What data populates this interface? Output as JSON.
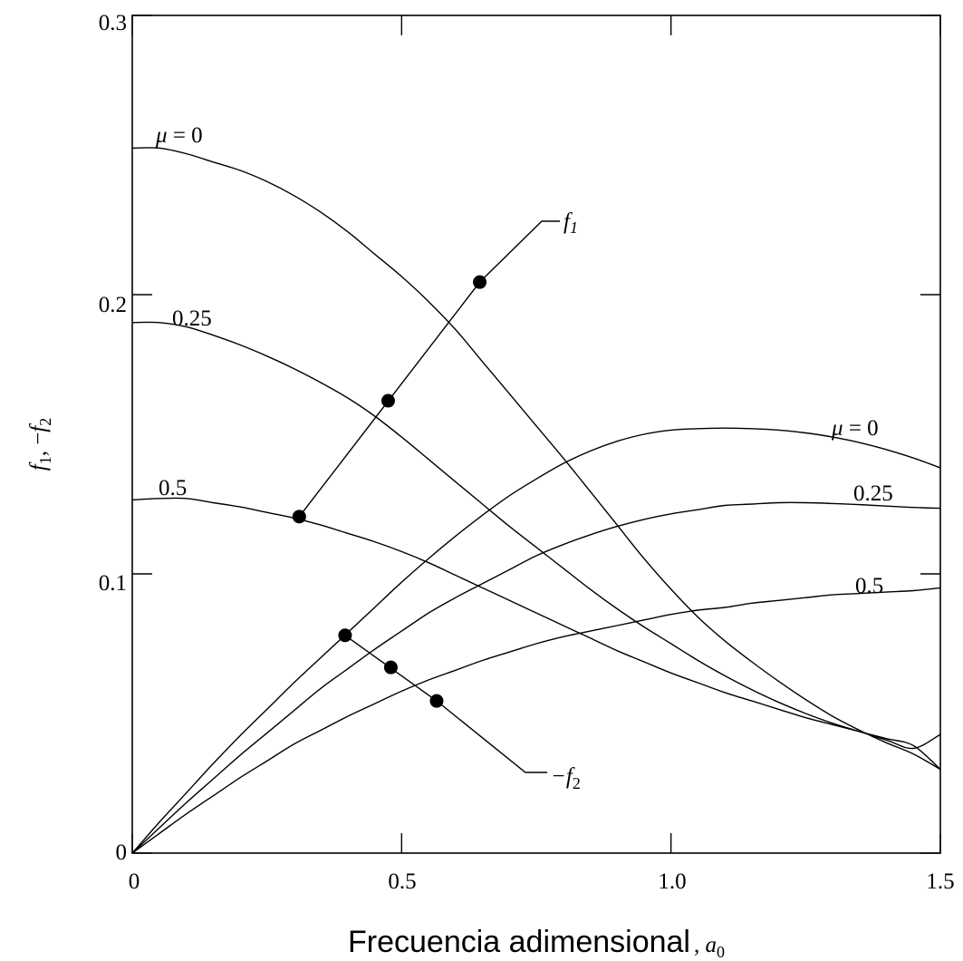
{
  "chart_data": {
    "type": "line",
    "xlabel": "Frecuencia adimensional",
    "xlabel_symbol": "a",
    "xlabel_sub": "0",
    "ylabel": "f",
    "ylabel_parts": {
      "f": "f",
      "one": "1",
      "sep": ", −",
      "f2": "f",
      "two": "2"
    },
    "xlim": [
      0,
      1.5
    ],
    "ylim": [
      0,
      0.3
    ],
    "xticks": [
      0,
      0.5,
      1.0,
      1.5
    ],
    "xtick_labels": [
      "0",
      "0.5",
      "1.0",
      "1.5"
    ],
    "yticks": [
      0,
      0.1,
      0.2,
      0.3
    ],
    "ytick_labels": [
      "0",
      "0.1",
      "0.2",
      "0.3"
    ],
    "grid": false,
    "x": [
      0,
      0.05,
      0.1,
      0.15,
      0.2,
      0.25,
      0.3,
      0.35,
      0.4,
      0.45,
      0.5,
      0.55,
      0.6,
      0.65,
      0.7,
      0.75,
      0.8,
      0.85,
      0.9,
      0.95,
      1.0,
      1.05,
      1.1,
      1.15,
      1.2,
      1.25,
      1.3,
      1.35,
      1.4,
      1.45,
      1.5
    ],
    "series": [
      {
        "group": "f1",
        "name": "μ = 0",
        "values": [
          0.2525,
          0.2525,
          0.2505,
          0.2475,
          0.2445,
          0.2405,
          0.2355,
          0.2295,
          0.2225,
          0.2145,
          0.2065,
          0.1975,
          0.1875,
          0.176,
          0.1645,
          0.153,
          0.1415,
          0.1295,
          0.1175,
          0.1055,
          0.0945,
          0.0845,
          0.076,
          0.0685,
          0.0615,
          0.055,
          0.049,
          0.044,
          0.0395,
          0.0355,
          0.03
        ]
      },
      {
        "group": "f1",
        "name": "0.25",
        "values": [
          0.19,
          0.19,
          0.1885,
          0.1855,
          0.182,
          0.178,
          0.1735,
          0.1685,
          0.163,
          0.1565,
          0.149,
          0.141,
          0.133,
          0.125,
          0.117,
          0.1095,
          0.102,
          0.0945,
          0.0875,
          0.081,
          0.075,
          0.069,
          0.0635,
          0.0585,
          0.054,
          0.05,
          0.0465,
          0.0435,
          0.0405,
          0.0375,
          0.0425
        ]
      },
      {
        "group": "f1",
        "name": "0.5",
        "values": [
          0.1265,
          0.127,
          0.127,
          0.1255,
          0.124,
          0.122,
          0.12,
          0.1175,
          0.1145,
          0.1115,
          0.108,
          0.104,
          0.0995,
          0.095,
          0.0905,
          0.086,
          0.0815,
          0.077,
          0.0725,
          0.0685,
          0.0645,
          0.061,
          0.0575,
          0.0545,
          0.0515,
          0.0485,
          0.046,
          0.0435,
          0.041,
          0.0385,
          0.03
        ]
      },
      {
        "group": "-f2",
        "name": "μ = 0",
        "values": [
          0,
          0.011,
          0.0215,
          0.032,
          0.042,
          0.0515,
          0.061,
          0.07,
          0.079,
          0.088,
          0.097,
          0.1055,
          0.1135,
          0.121,
          0.128,
          0.134,
          0.1395,
          0.144,
          0.1475,
          0.15,
          0.1515,
          0.152,
          0.1522,
          0.152,
          0.1515,
          0.1505,
          0.149,
          0.147,
          0.1445,
          0.1415,
          0.138
        ]
      },
      {
        "group": "-f2",
        "name": "0.25",
        "values": [
          0,
          0.009,
          0.018,
          0.0265,
          0.035,
          0.043,
          0.051,
          0.059,
          0.066,
          0.073,
          0.0795,
          0.086,
          0.0915,
          0.0965,
          0.1015,
          0.1065,
          0.1105,
          0.114,
          0.117,
          0.1195,
          0.1215,
          0.123,
          0.1245,
          0.125,
          0.1255,
          0.1255,
          0.1252,
          0.1248,
          0.1243,
          0.1238,
          0.1235
        ]
      },
      {
        "group": "-f2",
        "name": "0.5",
        "values": [
          0,
          0.007,
          0.014,
          0.0205,
          0.027,
          0.033,
          0.039,
          0.044,
          0.049,
          0.0535,
          0.058,
          0.062,
          0.0655,
          0.069,
          0.072,
          0.075,
          0.0775,
          0.0795,
          0.0815,
          0.0835,
          0.0855,
          0.087,
          0.088,
          0.0895,
          0.0905,
          0.0915,
          0.0925,
          0.093,
          0.0935,
          0.094,
          0.095
        ]
      }
    ],
    "f1_points": [
      {
        "x": 0.645,
        "y": 0.2045
      },
      {
        "x": 0.475,
        "y": 0.162
      },
      {
        "x": 0.31,
        "y": 0.1205
      }
    ],
    "f2_points": [
      {
        "x": 0.395,
        "y": 0.078
      },
      {
        "x": 0.48,
        "y": 0.0665
      },
      {
        "x": 0.565,
        "y": 0.0545
      }
    ],
    "annotations": {
      "f1_label": "f",
      "f1_sub": "1",
      "f2_label": "−f",
      "f2_sub": "2",
      "mu_symbol": "μ",
      "mu_eq": " = 0",
      "upper_labels": [
        "0.25",
        "0.5"
      ],
      "right_labels": [
        "0.25",
        "0.5"
      ]
    }
  }
}
